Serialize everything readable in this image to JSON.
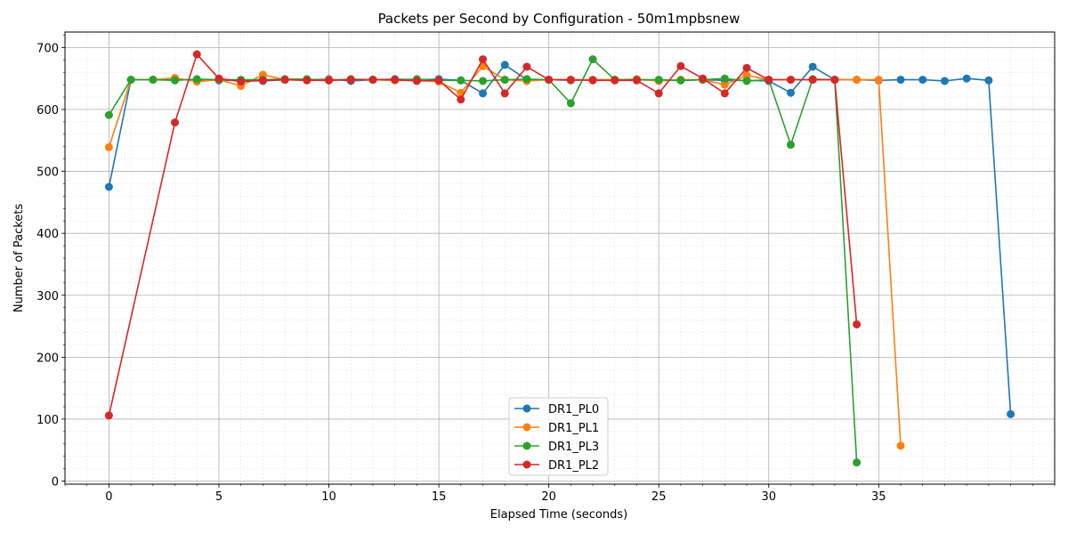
{
  "chart_data": {
    "type": "line",
    "title": "Packets per Second by Configuration - 50m1mpbsnew",
    "xlabel": "Elapsed Time (seconds)",
    "ylabel": "Number of Packets",
    "xlim": [
      -2,
      43
    ],
    "ylim": [
      -5,
      725
    ],
    "xticks": [
      0,
      5,
      10,
      15,
      20,
      25,
      30,
      35
    ],
    "yticks": [
      0,
      100,
      200,
      300,
      400,
      500,
      600,
      700
    ],
    "grid": "on",
    "legend_position": "bottom-center",
    "series": [
      {
        "name": "DR1_PL0",
        "color": "#1f77b4",
        "x": [
          0,
          1,
          2,
          3,
          4,
          5,
          6,
          7,
          8,
          9,
          10,
          11,
          12,
          13,
          14,
          15,
          16,
          17,
          18,
          19,
          20,
          21,
          22,
          23,
          24,
          25,
          26,
          27,
          28,
          29,
          30,
          31,
          32,
          33,
          34,
          35,
          36,
          37,
          38,
          39,
          40,
          41
        ],
        "y": [
          475,
          648,
          648,
          648,
          648,
          647,
          647,
          646,
          648,
          648,
          649,
          646,
          648,
          649,
          648,
          649,
          647,
          626,
          672,
          648,
          648,
          647,
          648,
          648,
          648,
          647,
          647,
          648,
          647,
          647,
          646,
          627,
          669,
          648,
          648,
          647,
          648,
          648,
          646,
          650,
          647,
          108
        ]
      },
      {
        "name": "DR1_PL1",
        "color": "#ff7f0e",
        "x": [
          0,
          1,
          2,
          3,
          4,
          5,
          6,
          7,
          8,
          9,
          10,
          11,
          12,
          13,
          14,
          15,
          16,
          17,
          18,
          19,
          20,
          21,
          22,
          23,
          24,
          25,
          26,
          27,
          28,
          29,
          30,
          31,
          32,
          33,
          34,
          35,
          36
        ],
        "y": [
          539,
          648,
          648,
          651,
          645,
          648,
          638,
          656,
          648,
          648,
          648,
          648,
          648,
          647,
          647,
          645,
          627,
          670,
          648,
          646,
          648,
          648,
          648,
          648,
          649,
          646,
          648,
          648,
          640,
          655,
          648,
          648,
          648,
          648,
          648,
          648,
          57
        ]
      },
      {
        "name": "DR1_PL3",
        "color": "#2ca02c",
        "x": [
          0,
          1,
          2,
          3,
          4,
          5,
          6,
          7,
          8,
          9,
          10,
          11,
          12,
          13,
          14,
          15,
          16,
          17,
          18,
          19,
          20,
          21,
          22,
          23,
          24,
          25,
          26,
          27,
          28,
          29,
          30,
          31,
          32,
          33,
          34
        ],
        "y": [
          591,
          648,
          648,
          647,
          649,
          648,
          648,
          648,
          649,
          649,
          647,
          649,
          648,
          648,
          649,
          647,
          647,
          646,
          648,
          649,
          648,
          610,
          681,
          648,
          648,
          648,
          647,
          648,
          650,
          646,
          648,
          543,
          649,
          648,
          30
        ]
      },
      {
        "name": "DR1_PL2",
        "color": "#d62728",
        "x": [
          0,
          3,
          4,
          5,
          6,
          7,
          8,
          9,
          10,
          11,
          12,
          13,
          14,
          15,
          16,
          17,
          18,
          19,
          20,
          21,
          22,
          23,
          24,
          25,
          26,
          27,
          28,
          29,
          30,
          31,
          32,
          33,
          34
        ],
        "y": [
          106,
          579,
          689,
          650,
          645,
          647,
          648,
          647,
          647,
          648,
          648,
          648,
          646,
          647,
          616,
          681,
          626,
          669,
          648,
          648,
          647,
          647,
          647,
          626,
          670,
          650,
          626,
          667,
          648,
          648,
          648,
          648,
          253
        ]
      }
    ]
  }
}
